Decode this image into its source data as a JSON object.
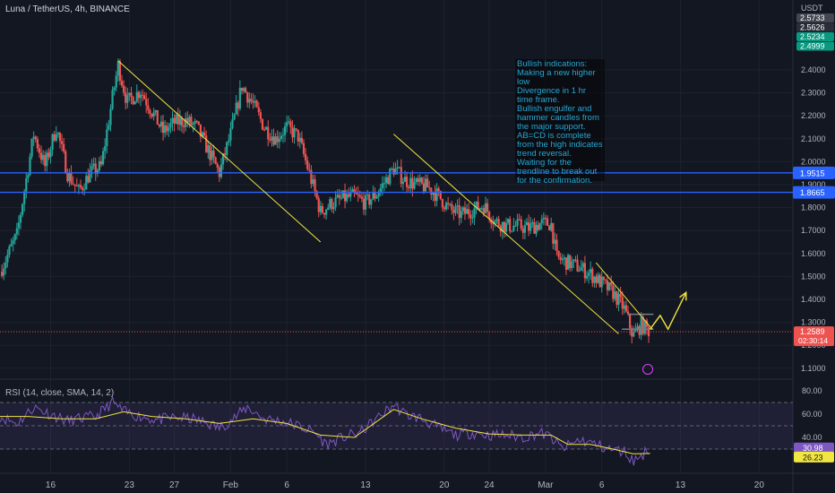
{
  "header": {
    "title": "Luna / TetherUS, 4h, BINANCE",
    "currency": "USDT"
  },
  "annotation": {
    "lines": [
      "Bullish indications:",
      "Making a new higher low",
      "Divergence in 1 hr time frame.",
      "Bullish engulfer and hammer candles from the major support.",
      "AB=CD is complete from the high indicates trend reversal.",
      "Waiting for the trendline to break out for the confirmation."
    ]
  },
  "colors": {
    "bull": "#26a69a",
    "bear": "#ef5350",
    "trendline": "#f2e640",
    "hline": "#2962ff",
    "rsi": "#7e57c2",
    "rsi_sma": "#f2e640"
  },
  "chart_data": {
    "type": "candlestick",
    "price_axis": {
      "min": 1.1,
      "max": 2.4,
      "ticks": [
        "2.4000",
        "2.3000",
        "2.2000",
        "2.1000",
        "2.0000",
        "1.9000",
        "1.8000",
        "1.7000",
        "1.6000",
        "1.5000",
        "1.4000",
        "1.3000",
        "1.2000",
        "1.1000"
      ]
    },
    "x_axis": {
      "ticks": [
        {
          "label": "16",
          "pos": 16
        },
        {
          "label": "23",
          "pos": 23
        },
        {
          "label": "27",
          "pos": 27
        },
        {
          "label": "Feb",
          "pos": 32
        },
        {
          "label": "6",
          "pos": 37
        },
        {
          "label": "13",
          "pos": 44
        },
        {
          "label": "20",
          "pos": 51
        },
        {
          "label": "24",
          "pos": 55
        },
        {
          "label": "Mar",
          "pos": 60
        },
        {
          "label": "6",
          "pos": 65
        },
        {
          "label": "13",
          "pos": 72
        },
        {
          "label": "20",
          "pos": 79
        }
      ],
      "range": [
        11.5,
        82
      ]
    },
    "price_path": [
      [
        11.5,
        1.52
      ],
      [
        13,
        1.68
      ],
      [
        14.5,
        2.12
      ],
      [
        15.5,
        1.98
      ],
      [
        16.5,
        2.15
      ],
      [
        17.5,
        1.95
      ],
      [
        18.5,
        1.87
      ],
      [
        19.5,
        1.95
      ],
      [
        20.5,
        1.98
      ],
      [
        21.5,
        2.28
      ],
      [
        22,
        2.42
      ],
      [
        22.8,
        2.26
      ],
      [
        24,
        2.31
      ],
      [
        25,
        2.22
      ],
      [
        26,
        2.13
      ],
      [
        27,
        2.17
      ],
      [
        28,
        2.18
      ],
      [
        29,
        2.15
      ],
      [
        30,
        2.05
      ],
      [
        31,
        1.95
      ],
      [
        32,
        2.12
      ],
      [
        33,
        2.33
      ],
      [
        34,
        2.25
      ],
      [
        35,
        2.15
      ],
      [
        36,
        2.1
      ],
      [
        37,
        2.15
      ],
      [
        38,
        2.11
      ],
      [
        39,
        1.95
      ],
      [
        40,
        1.78
      ],
      [
        41,
        1.82
      ],
      [
        42,
        1.84
      ],
      [
        43,
        1.85
      ],
      [
        44,
        1.82
      ],
      [
        45,
        1.86
      ],
      [
        46.5,
        1.97
      ],
      [
        47.5,
        1.92
      ],
      [
        48.5,
        1.9
      ],
      [
        49.5,
        1.89
      ],
      [
        50.5,
        1.85
      ],
      [
        51.5,
        1.79
      ],
      [
        52.5,
        1.77
      ],
      [
        53.5,
        1.79
      ],
      [
        54.5,
        1.81
      ],
      [
        55.5,
        1.74
      ],
      [
        56.5,
        1.72
      ],
      [
        57.5,
        1.72
      ],
      [
        58.5,
        1.71
      ],
      [
        59.5,
        1.73
      ],
      [
        60.5,
        1.73
      ],
      [
        61,
        1.58
      ],
      [
        62,
        1.56
      ],
      [
        63,
        1.54
      ],
      [
        64,
        1.51
      ],
      [
        65,
        1.47
      ],
      [
        66,
        1.43
      ],
      [
        67,
        1.36
      ],
      [
        67.8,
        1.24
      ],
      [
        68.5,
        1.29
      ],
      [
        69,
        1.27
      ],
      [
        69.3,
        1.259
      ]
    ],
    "price_levels": [
      {
        "value": 1.9515,
        "label": "1.9515",
        "color": "#2962ff"
      },
      {
        "value": 1.8665,
        "label": "1.8665",
        "color": "#2962ff"
      }
    ],
    "last_price": {
      "value": 1.2589,
      "label": "1.2589",
      "countdown": "02:30:14"
    },
    "top_price_labels": [
      {
        "value": 2.5733,
        "label": "2.5733",
        "color": "#434651"
      },
      {
        "value": 2.5626,
        "label": "2.5626",
        "color": "#2a2e39"
      },
      {
        "value": 2.5234,
        "label": "2.5234",
        "color": "#089981"
      },
      {
        "value": 2.4999,
        "label": "2.4999",
        "color": "#089981"
      }
    ],
    "trendlines": [
      {
        "from": [
          22,
          2.44
        ],
        "to": [
          40,
          1.65
        ]
      },
      {
        "from": [
          46.5,
          2.12
        ],
        "to": [
          66.5,
          1.25
        ]
      },
      {
        "from": [
          64.5,
          1.56
        ],
        "to": [
          69.5,
          1.27
        ]
      }
    ],
    "projection": [
      [
        69.3,
        1.27
      ],
      [
        70.2,
        1.33
      ],
      [
        70.9,
        1.27
      ],
      [
        72.5,
        1.43
      ]
    ],
    "rsi": {
      "title": "RSI (14, close, SMA, 14, 2)",
      "axis_ticks": [
        "80.00",
        "60.00",
        "40.00"
      ],
      "band": [
        30,
        70
      ],
      "value": 30.98,
      "value_label": "30.98",
      "sma": 26.23,
      "sma_label": "26.23",
      "series": [
        [
          11.5,
          58
        ],
        [
          13,
          52
        ],
        [
          14.5,
          66
        ],
        [
          16,
          60
        ],
        [
          17.5,
          54
        ],
        [
          18.5,
          56
        ],
        [
          20,
          58
        ],
        [
          21.5,
          70
        ],
        [
          22.5,
          62
        ],
        [
          24,
          58
        ],
        [
          25.5,
          55
        ],
        [
          27,
          57
        ],
        [
          28.5,
          56
        ],
        [
          30,
          52
        ],
        [
          31,
          48
        ],
        [
          32.5,
          58
        ],
        [
          33.5,
          66
        ],
        [
          35,
          56
        ],
        [
          36.5,
          54
        ],
        [
          38,
          50
        ],
        [
          39.5,
          44
        ],
        [
          40.5,
          34
        ],
        [
          42,
          40
        ],
        [
          43.5,
          44
        ],
        [
          45,
          56
        ],
        [
          46.5,
          68
        ],
        [
          47.5,
          60
        ],
        [
          49,
          56
        ],
        [
          50.5,
          48
        ],
        [
          52,
          42
        ],
        [
          53.5,
          44
        ],
        [
          55,
          42
        ],
        [
          56.5,
          42
        ],
        [
          58,
          40
        ],
        [
          59.5,
          44
        ],
        [
          60.5,
          40
        ],
        [
          61.5,
          30
        ],
        [
          63,
          38
        ],
        [
          64.5,
          34
        ],
        [
          65.5,
          30
        ],
        [
          67,
          28
        ],
        [
          67.8,
          20
        ],
        [
          68.5,
          24
        ],
        [
          69.3,
          30.98
        ]
      ],
      "sma_series": [
        [
          11.5,
          58
        ],
        [
          14,
          58
        ],
        [
          17,
          56
        ],
        [
          20,
          56
        ],
        [
          22.5,
          62
        ],
        [
          25,
          58
        ],
        [
          28,
          56
        ],
        [
          31,
          52
        ],
        [
          34,
          56
        ],
        [
          37,
          52
        ],
        [
          40,
          42
        ],
        [
          43,
          40
        ],
        [
          46.5,
          64
        ],
        [
          49,
          56
        ],
        [
          52,
          48
        ],
        [
          55,
          43
        ],
        [
          58,
          42
        ],
        [
          60.5,
          42
        ],
        [
          62,
          34
        ],
        [
          64,
          34
        ],
        [
          66,
          30
        ],
        [
          67.8,
          26
        ],
        [
          69.3,
          26.23
        ]
      ]
    }
  }
}
